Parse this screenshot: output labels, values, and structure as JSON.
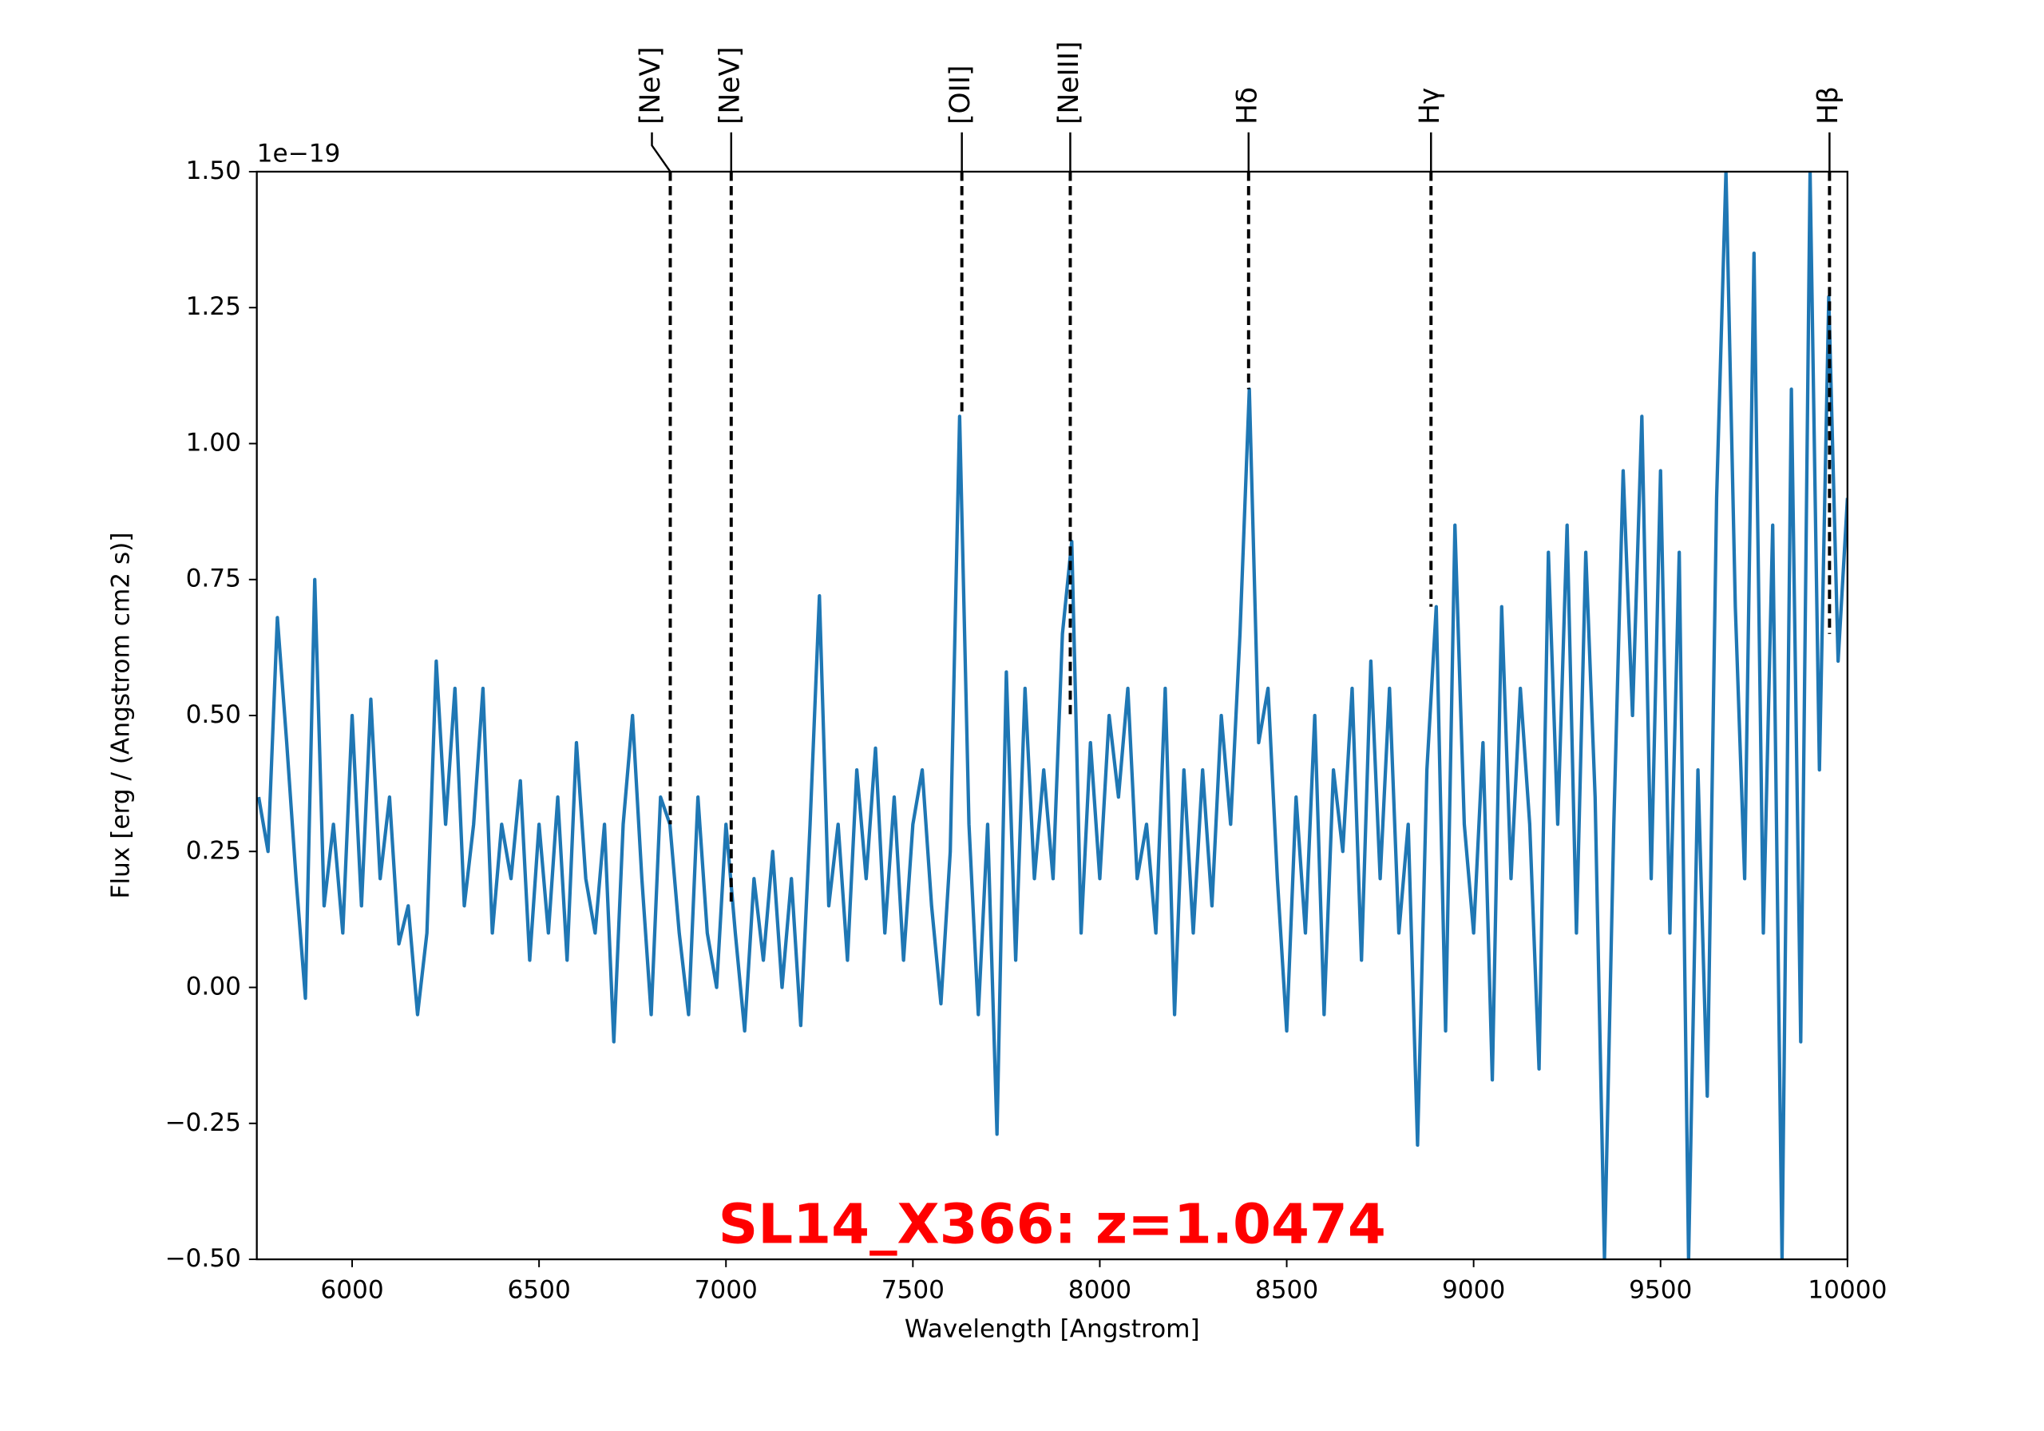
{
  "chart_data": {
    "type": "line",
    "xlabel": "Wavelength [Angstrom]",
    "ylabel": "Flux [erg / (Angstrom cm2 s)]",
    "y_offset_label": "1e−19",
    "annotation": "SL14_X366: z=1.0474",
    "annotation_color": "#ff0000",
    "xlim": [
      5745,
      10000
    ],
    "ylim": [
      -0.5,
      1.5
    ],
    "xticks": [
      6000,
      6500,
      7000,
      7500,
      8000,
      8500,
      9000,
      9500,
      10000
    ],
    "yticks": [
      {
        "value": -0.5,
        "label": "−0.50"
      },
      {
        "value": -0.25,
        "label": "−0.25"
      },
      {
        "value": 0,
        "label": "0.00"
      },
      {
        "value": 0.25,
        "label": "0.25"
      },
      {
        "value": 0.5,
        "label": "0.50"
      },
      {
        "value": 0.75,
        "label": "0.75"
      },
      {
        "value": 1,
        "label": "1.00"
      },
      {
        "value": 1.25,
        "label": "1.25"
      },
      {
        "value": 1.5,
        "label": "1.50"
      }
    ],
    "grid": false,
    "series": [
      {
        "color": "#1f77b4",
        "x": [
          5750,
          5775,
          5800,
          5825,
          5850,
          5875,
          5900,
          5925,
          5950,
          5975,
          6000,
          6025,
          6050,
          6075,
          6100,
          6125,
          6150,
          6175,
          6200,
          6225,
          6250,
          6275,
          6300,
          6325,
          6350,
          6375,
          6400,
          6425,
          6450,
          6475,
          6500,
          6525,
          6550,
          6575,
          6600,
          6625,
          6650,
          6675,
          6700,
          6725,
          6750,
          6775,
          6800,
          6825,
          6850,
          6875,
          6900,
          6925,
          6950,
          6975,
          7000,
          7025,
          7050,
          7075,
          7100,
          7125,
          7150,
          7175,
          7200,
          7225,
          7250,
          7275,
          7300,
          7325,
          7350,
          7375,
          7400,
          7425,
          7450,
          7475,
          7500,
          7525,
          7550,
          7575,
          7600,
          7625,
          7650,
          7675,
          7700,
          7725,
          7750,
          7775,
          7800,
          7825,
          7850,
          7875,
          7900,
          7925,
          7950,
          7975,
          8000,
          8025,
          8050,
          8075,
          8100,
          8125,
          8150,
          8175,
          8200,
          8225,
          8250,
          8275,
          8300,
          8325,
          8350,
          8375,
          8400,
          8425,
          8450,
          8475,
          8500,
          8525,
          8550,
          8575,
          8600,
          8625,
          8650,
          8675,
          8700,
          8725,
          8750,
          8775,
          8800,
          8825,
          8850,
          8875,
          8900,
          8925,
          8950,
          8975,
          9000,
          9025,
          9050,
          9075,
          9100,
          9125,
          9150,
          9175,
          9200,
          9225,
          9250,
          9275,
          9300,
          9325,
          9350,
          9375,
          9400,
          9425,
          9450,
          9475,
          9500,
          9525,
          9550,
          9575,
          9600,
          9625,
          9650,
          9675,
          9700,
          9725,
          9750,
          9775,
          9800,
          9825,
          9850,
          9875,
          9900,
          9925,
          9950,
          9975,
          10000
        ],
        "values": [
          0.35,
          0.25,
          0.68,
          0.45,
          0.2,
          -0.02,
          0.75,
          0.15,
          0.3,
          0.1,
          0.5,
          0.15,
          0.53,
          0.2,
          0.35,
          0.08,
          0.15,
          -0.05,
          0.1,
          0.6,
          0.3,
          0.55,
          0.15,
          0.3,
          0.55,
          0.1,
          0.3,
          0.2,
          0.38,
          0.05,
          0.3,
          0.1,
          0.35,
          0.05,
          0.45,
          0.2,
          0.1,
          0.3,
          -0.1,
          0.3,
          0.5,
          0.2,
          -0.05,
          0.35,
          0.3,
          0.1,
          -0.05,
          0.35,
          0.1,
          0.0,
          0.3,
          0.1,
          -0.08,
          0.2,
          0.05,
          0.25,
          0.0,
          0.2,
          -0.07,
          0.3,
          0.72,
          0.15,
          0.3,
          0.05,
          0.4,
          0.2,
          0.44,
          0.1,
          0.35,
          0.05,
          0.3,
          0.4,
          0.15,
          -0.03,
          0.25,
          1.05,
          0.3,
          -0.05,
          0.3,
          -0.27,
          0.58,
          0.05,
          0.55,
          0.2,
          0.4,
          0.2,
          0.65,
          0.82,
          0.1,
          0.45,
          0.2,
          0.5,
          0.35,
          0.55,
          0.2,
          0.3,
          0.1,
          0.55,
          -0.05,
          0.4,
          0.1,
          0.4,
          0.15,
          0.5,
          0.3,
          0.65,
          1.1,
          0.45,
          0.55,
          0.2,
          -0.08,
          0.35,
          0.1,
          0.5,
          -0.05,
          0.4,
          0.25,
          0.55,
          0.05,
          0.6,
          0.2,
          0.55,
          0.1,
          0.3,
          -0.29,
          0.4,
          0.7,
          -0.08,
          0.85,
          0.3,
          0.1,
          0.45,
          -0.17,
          0.7,
          0.2,
          0.55,
          0.3,
          -0.15,
          0.8,
          0.3,
          0.85,
          0.1,
          0.8,
          0.35,
          -0.5,
          0.3,
          0.95,
          0.5,
          1.05,
          0.2,
          0.95,
          0.1,
          0.8,
          -0.5,
          0.4,
          -0.2,
          0.9,
          1.5,
          0.7,
          0.2,
          1.35,
          0.1,
          0.85,
          -0.5,
          1.1,
          -0.1,
          1.5,
          0.4,
          1.27,
          0.6,
          0.9
        ]
      }
    ],
    "lines": [
      {
        "label": "[NeV]",
        "wavelength": 6851,
        "flux": 0.3
      },
      {
        "label": "[NeV]",
        "wavelength": 7014,
        "flux": 0.15
      },
      {
        "label": "[OII]",
        "wavelength": 7631,
        "flux": 1.05
      },
      {
        "label": "[NeIII]",
        "wavelength": 7921,
        "flux": 0.5
      },
      {
        "label": "Hδ",
        "wavelength": 8398,
        "flux": 1.1
      },
      {
        "label": "Hγ",
        "wavelength": 8886,
        "flux": 0.7
      },
      {
        "label": "Hβ",
        "wavelength": 9952,
        "flux": 0.65
      }
    ],
    "line_color": "#000000"
  }
}
